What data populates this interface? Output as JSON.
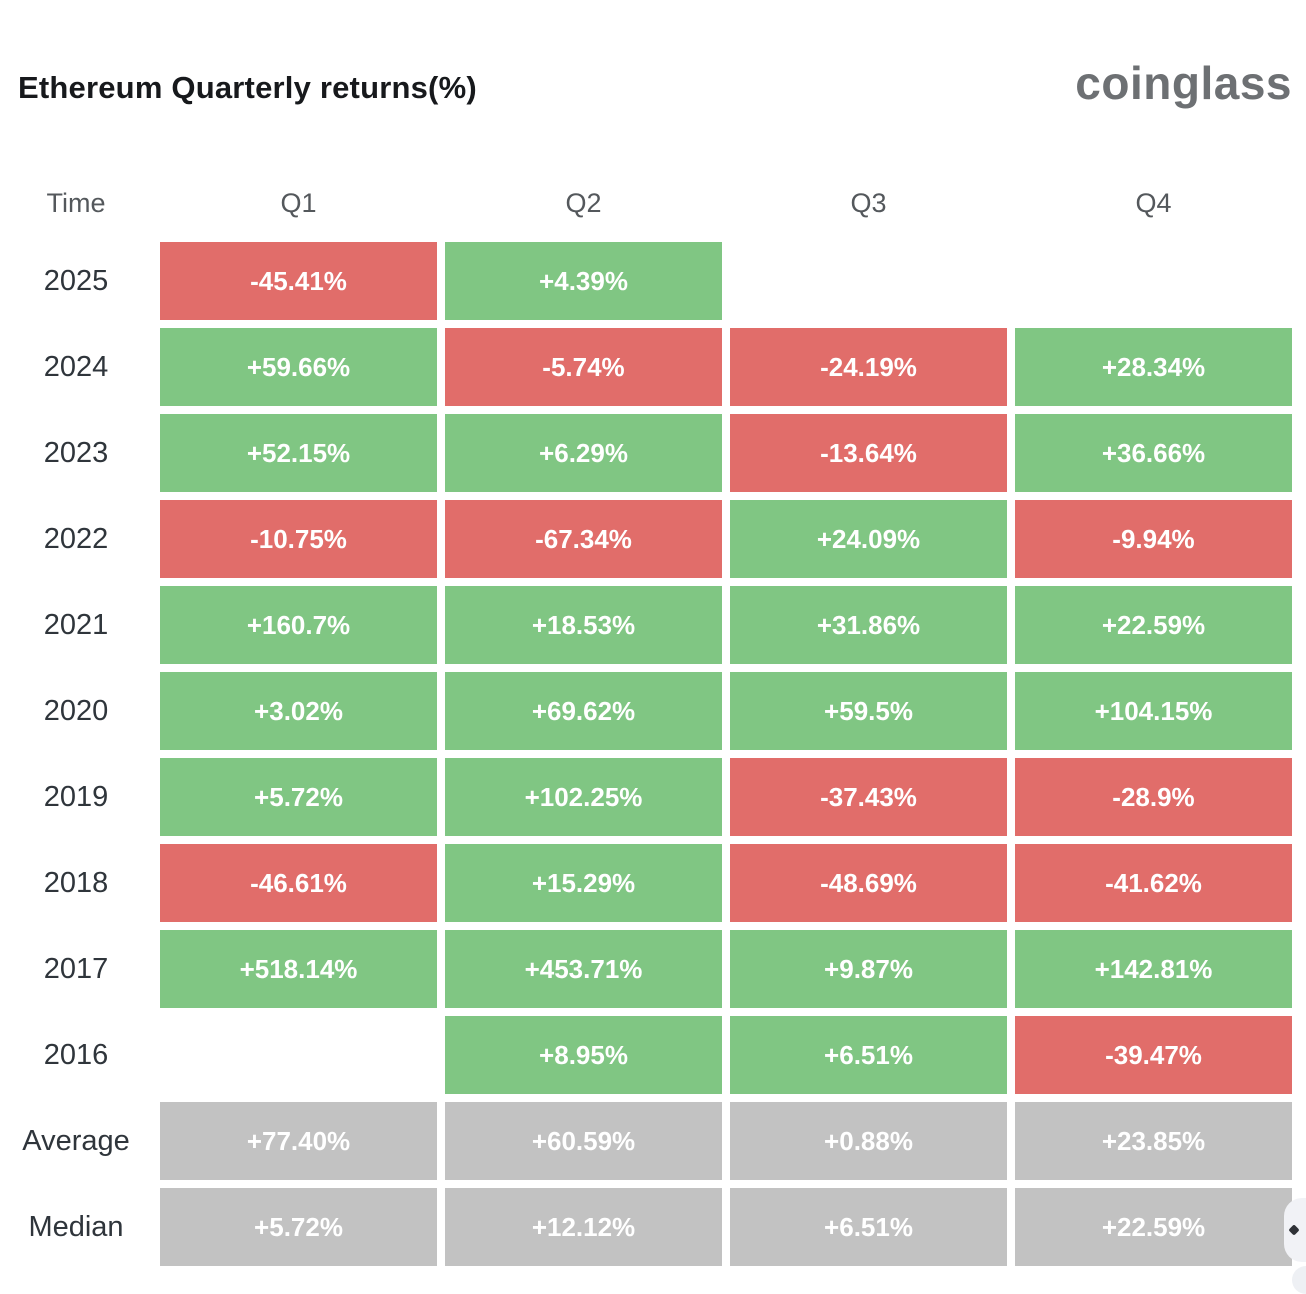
{
  "header": {
    "title": "Ethereum Quarterly returns(%)",
    "logo": "coinglass"
  },
  "colors": {
    "green": "#80c683",
    "red": "#e16d6a",
    "gray": "#c2c2c2",
    "empty": "transparent"
  },
  "table": {
    "columns": [
      "Time",
      "Q1",
      "Q2",
      "Q3",
      "Q4"
    ],
    "rows": [
      {
        "label": "2025",
        "cells": [
          {
            "text": "-45.41%",
            "color": "red"
          },
          {
            "text": "+4.39%",
            "color": "green"
          },
          {
            "text": "",
            "color": "empty"
          },
          {
            "text": "",
            "color": "empty"
          }
        ]
      },
      {
        "label": "2024",
        "cells": [
          {
            "text": "+59.66%",
            "color": "green"
          },
          {
            "text": "-5.74%",
            "color": "red"
          },
          {
            "text": "-24.19%",
            "color": "red"
          },
          {
            "text": "+28.34%",
            "color": "green"
          }
        ]
      },
      {
        "label": "2023",
        "cells": [
          {
            "text": "+52.15%",
            "color": "green"
          },
          {
            "text": "+6.29%",
            "color": "green"
          },
          {
            "text": "-13.64%",
            "color": "red"
          },
          {
            "text": "+36.66%",
            "color": "green"
          }
        ]
      },
      {
        "label": "2022",
        "cells": [
          {
            "text": "-10.75%",
            "color": "red"
          },
          {
            "text": "-67.34%",
            "color": "red"
          },
          {
            "text": "+24.09%",
            "color": "green"
          },
          {
            "text": "-9.94%",
            "color": "red"
          }
        ]
      },
      {
        "label": "2021",
        "cells": [
          {
            "text": "+160.7%",
            "color": "green"
          },
          {
            "text": "+18.53%",
            "color": "green"
          },
          {
            "text": "+31.86%",
            "color": "green"
          },
          {
            "text": "+22.59%",
            "color": "green"
          }
        ]
      },
      {
        "label": "2020",
        "cells": [
          {
            "text": "+3.02%",
            "color": "green"
          },
          {
            "text": "+69.62%",
            "color": "green"
          },
          {
            "text": "+59.5%",
            "color": "green"
          },
          {
            "text": "+104.15%",
            "color": "green"
          }
        ]
      },
      {
        "label": "2019",
        "cells": [
          {
            "text": "+5.72%",
            "color": "green"
          },
          {
            "text": "+102.25%",
            "color": "green"
          },
          {
            "text": "-37.43%",
            "color": "red"
          },
          {
            "text": "-28.9%",
            "color": "red"
          }
        ]
      },
      {
        "label": "2018",
        "cells": [
          {
            "text": "-46.61%",
            "color": "red"
          },
          {
            "text": "+15.29%",
            "color": "green"
          },
          {
            "text": "-48.69%",
            "color": "red"
          },
          {
            "text": "-41.62%",
            "color": "red"
          }
        ]
      },
      {
        "label": "2017",
        "cells": [
          {
            "text": "+518.14%",
            "color": "green"
          },
          {
            "text": "+453.71%",
            "color": "green"
          },
          {
            "text": "+9.87%",
            "color": "green"
          },
          {
            "text": "+142.81%",
            "color": "green"
          }
        ]
      },
      {
        "label": "2016",
        "cells": [
          {
            "text": "",
            "color": "empty"
          },
          {
            "text": "+8.95%",
            "color": "green"
          },
          {
            "text": "+6.51%",
            "color": "green"
          },
          {
            "text": "-39.47%",
            "color": "red"
          }
        ]
      },
      {
        "label": "Average",
        "cells": [
          {
            "text": "+77.40%",
            "color": "gray"
          },
          {
            "text": "+60.59%",
            "color": "gray"
          },
          {
            "text": "+0.88%",
            "color": "gray"
          },
          {
            "text": "+23.85%",
            "color": "gray"
          }
        ]
      },
      {
        "label": "Median",
        "cells": [
          {
            "text": "+5.72%",
            "color": "gray"
          },
          {
            "text": "+12.12%",
            "color": "gray"
          },
          {
            "text": "+6.51%",
            "color": "gray"
          },
          {
            "text": "+22.59%",
            "color": "gray"
          }
        ]
      }
    ]
  },
  "chart_data": {
    "type": "heatmap",
    "title": "Ethereum Quarterly returns(%)",
    "columns": [
      "Q1",
      "Q2",
      "Q3",
      "Q4"
    ],
    "rows": [
      "2025",
      "2024",
      "2023",
      "2022",
      "2021",
      "2020",
      "2019",
      "2018",
      "2017",
      "2016",
      "Average",
      "Median"
    ],
    "values": [
      [
        -45.41,
        4.39,
        null,
        null
      ],
      [
        59.66,
        -5.74,
        -24.19,
        28.34
      ],
      [
        52.15,
        6.29,
        -13.64,
        36.66
      ],
      [
        -10.75,
        -67.34,
        24.09,
        -9.94
      ],
      [
        160.7,
        18.53,
        31.86,
        22.59
      ],
      [
        3.02,
        69.62,
        59.5,
        104.15
      ],
      [
        5.72,
        102.25,
        -37.43,
        -28.9
      ],
      [
        -46.61,
        15.29,
        -48.69,
        -41.62
      ],
      [
        518.14,
        453.71,
        9.87,
        142.81
      ],
      [
        null,
        8.95,
        6.51,
        -39.47
      ],
      [
        77.4,
        60.59,
        0.88,
        23.85
      ],
      [
        5.72,
        12.12,
        6.51,
        22.59
      ]
    ],
    "legend": "green = positive return, red = negative return, gray = summary rows",
    "units": "percent"
  }
}
